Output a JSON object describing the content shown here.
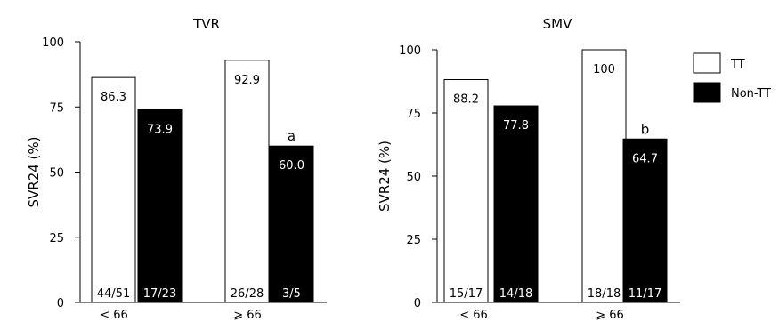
{
  "legend": {
    "items": [
      {
        "label": "TT",
        "color": "#ffffff"
      },
      {
        "label": "Non-TT",
        "color": "#000000"
      }
    ]
  },
  "chart_data": [
    {
      "type": "bar",
      "title": "TVR",
      "ylabel": "SVR24 (%)",
      "ylim": [
        0,
        100
      ],
      "yticks": [
        "0",
        "25",
        "50",
        "75",
        "100"
      ],
      "categories": [
        "< 66",
        "⩾ 66"
      ],
      "series": [
        {
          "name": "TT",
          "color": "#ffffff",
          "values": [
            86.3,
            92.9
          ],
          "labels": [
            "86.3",
            "92.9"
          ],
          "counts": [
            "44/51",
            "26/28"
          ],
          "annotations": [
            "",
            ""
          ]
        },
        {
          "name": "Non-TT",
          "color": "#000000",
          "values": [
            73.9,
            60.0
          ],
          "labels": [
            "73.9",
            "60.0"
          ],
          "counts": [
            "17/23",
            "3/5"
          ],
          "annotations": [
            "",
            "a"
          ]
        }
      ]
    },
    {
      "type": "bar",
      "title": "SMV",
      "ylabel": "SVR24 (%)",
      "ylim": [
        0,
        100
      ],
      "yticks": [
        "0",
        "25",
        "50",
        "75",
        "100"
      ],
      "categories": [
        "< 66",
        "⩾ 66"
      ],
      "series": [
        {
          "name": "TT",
          "color": "#ffffff",
          "values": [
            88.2,
            100
          ],
          "labels": [
            "88.2",
            "100"
          ],
          "counts": [
            "15/17",
            "18/18"
          ],
          "annotations": [
            "",
            ""
          ]
        },
        {
          "name": "Non-TT",
          "color": "#000000",
          "values": [
            77.8,
            64.7
          ],
          "labels": [
            "77.8",
            "64.7"
          ],
          "counts": [
            "14/18",
            "11/17"
          ],
          "annotations": [
            "",
            "b"
          ]
        }
      ]
    }
  ]
}
